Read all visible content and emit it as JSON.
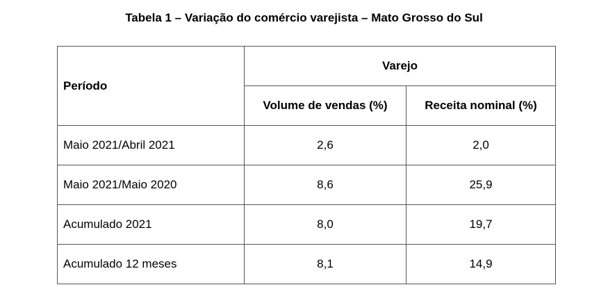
{
  "title": "Tabela 1 – Variação do comércio varejista – Mato Grosso do Sul",
  "table": {
    "header": {
      "periodo": "Período",
      "group": "Varejo",
      "col_volume": "Volume de vendas (%)",
      "col_receita": "Receita nominal (%)"
    },
    "rows": [
      {
        "periodo": "Maio 2021/Abril 2021",
        "volume": "2,6",
        "receita": "2,0"
      },
      {
        "periodo": "Maio 2021/Maio 2020",
        "volume": "8,6",
        "receita": "25,9"
      },
      {
        "periodo": "Acumulado 2021",
        "volume": "8,0",
        "receita": "19,7"
      },
      {
        "periodo": "Acumulado 12 meses",
        "volume": "8,1",
        "receita": "14,9"
      }
    ]
  }
}
